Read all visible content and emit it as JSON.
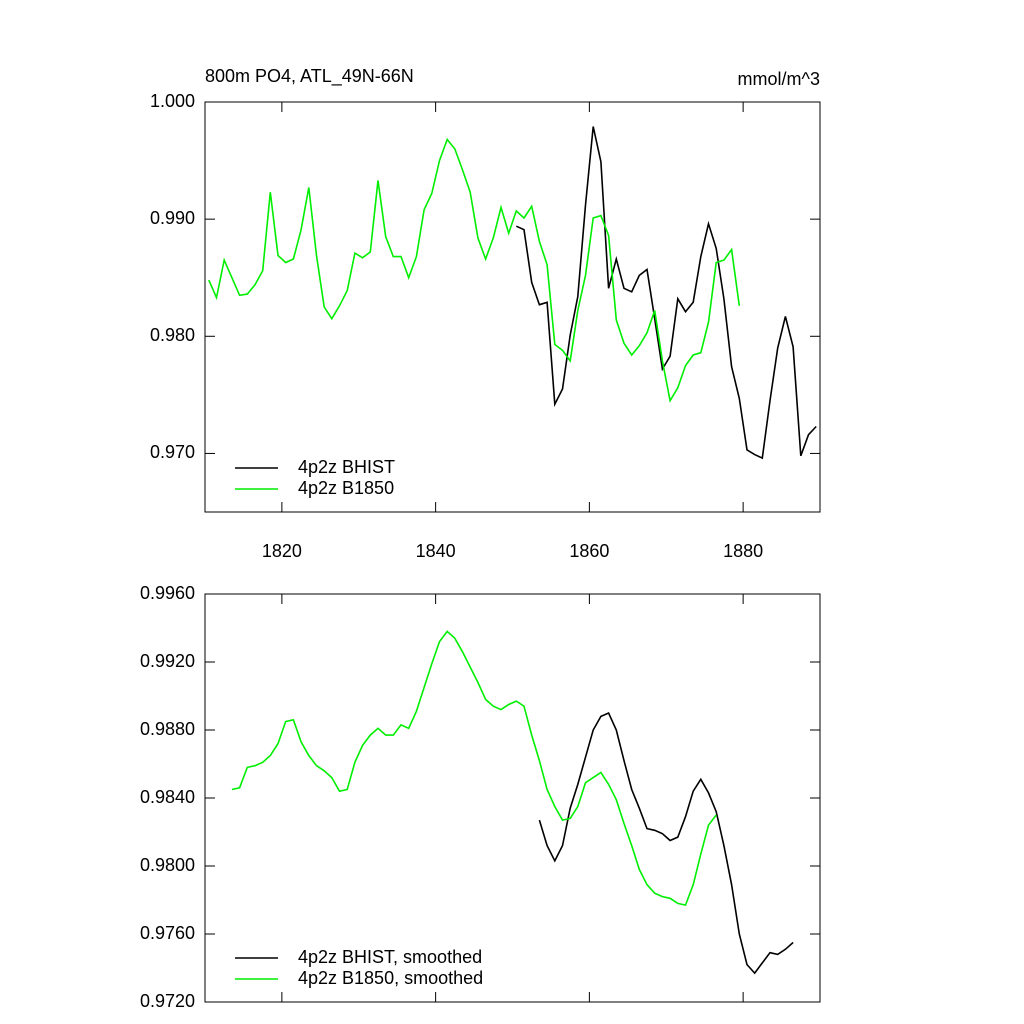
{
  "chart_data": [
    {
      "type": "line",
      "title": "800m PO4, ATL_49N-66N",
      "units": "mmol/m^3",
      "xlim": [
        1810,
        1890
      ],
      "xticks": [
        1820,
        1840,
        1860,
        1880
      ],
      "ylim": [
        0.965,
        1.0
      ],
      "yticks": [
        {
          "value": 0.97,
          "label": "0.970"
        },
        {
          "value": 0.98,
          "label": "0.980"
        },
        {
          "value": 0.99,
          "label": "0.990"
        },
        {
          "value": 1.0,
          "label": "1.000"
        }
      ],
      "legend": "lower left",
      "series": [
        {
          "name": "4p2z BHIST",
          "color": "#000000",
          "x": [
            1850.5,
            1851.5,
            1852.5,
            1853.5,
            1854.5,
            1855.5,
            1856.5,
            1857.5,
            1858.5,
            1859.5,
            1860.5,
            1861.5,
            1862.5,
            1863.5,
            1864.5,
            1865.5,
            1866.5,
            1867.5,
            1868.5,
            1869.5,
            1870.5,
            1871.5,
            1872.5,
            1873.5,
            1874.5,
            1875.5,
            1876.5,
            1877.5,
            1878.5,
            1879.5,
            1880.5,
            1881.5,
            1882.5,
            1883.5,
            1884.5,
            1885.5,
            1886.5,
            1887.5,
            1888.5,
            1889.5
          ],
          "values": [
            0.9894,
            0.9891,
            0.9846,
            0.9827,
            0.9829,
            0.9742,
            0.9755,
            0.9801,
            0.9834,
            0.9912,
            0.9979,
            0.9949,
            0.9841,
            0.9866,
            0.9841,
            0.9838,
            0.9852,
            0.9857,
            0.9815,
            0.9772,
            0.9783,
            0.9832,
            0.9821,
            0.9829,
            0.9868,
            0.9896,
            0.9875,
            0.9832,
            0.9774,
            0.9747,
            0.9703,
            0.9699,
            0.9696,
            0.9745,
            0.979,
            0.9817,
            0.9791,
            0.9698,
            0.9716,
            0.9723
          ]
        },
        {
          "name": "4p2z B1850",
          "color": "#00ee00",
          "x": [
            1810.5,
            1811.5,
            1812.5,
            1813.5,
            1814.5,
            1815.5,
            1816.5,
            1817.5,
            1818.5,
            1819.5,
            1820.5,
            1821.5,
            1822.5,
            1823.5,
            1824.5,
            1825.5,
            1826.5,
            1827.5,
            1828.5,
            1829.5,
            1830.5,
            1831.5,
            1832.5,
            1833.5,
            1834.5,
            1835.5,
            1836.5,
            1837.5,
            1838.5,
            1839.5,
            1840.5,
            1841.5,
            1842.5,
            1843.5,
            1844.5,
            1845.5,
            1846.5,
            1847.5,
            1848.5,
            1849.5,
            1850.5,
            1851.5,
            1852.5,
            1853.5,
            1854.5,
            1855.5,
            1856.5,
            1857.5,
            1858.5,
            1859.5,
            1860.5,
            1861.5,
            1862.5,
            1863.5,
            1864.5,
            1865.5,
            1866.5,
            1867.5,
            1868.5,
            1869.5,
            1870.5,
            1871.5,
            1872.5,
            1873.5,
            1874.5,
            1875.5,
            1876.5,
            1877.5,
            1878.5,
            1879.5
          ],
          "values": [
            0.9848,
            0.9833,
            0.9865,
            0.985,
            0.9835,
            0.9836,
            0.9844,
            0.9856,
            0.9923,
            0.9869,
            0.9863,
            0.9866,
            0.9891,
            0.9927,
            0.9869,
            0.9825,
            0.9815,
            0.9826,
            0.9839,
            0.9871,
            0.9867,
            0.9872,
            0.9933,
            0.9885,
            0.9868,
            0.9868,
            0.985,
            0.9868,
            0.9908,
            0.9922,
            0.995,
            0.9968,
            0.996,
            0.9942,
            0.9923,
            0.9884,
            0.9866,
            0.9884,
            0.991,
            0.9888,
            0.9907,
            0.9901,
            0.9911,
            0.9881,
            0.9861,
            0.9793,
            0.9788,
            0.9779,
            0.9822,
            0.9852,
            0.9901,
            0.9903,
            0.9886,
            0.9814,
            0.9794,
            0.9784,
            0.9792,
            0.9803,
            0.9822,
            0.9779,
            0.9745,
            0.9756,
            0.9775,
            0.9784,
            0.9786,
            0.9812,
            0.9863,
            0.9865,
            0.9874,
            0.9826
          ]
        }
      ]
    },
    {
      "type": "line",
      "xlim": [
        1810,
        1890
      ],
      "ylim": [
        0.972,
        0.996
      ],
      "yticks": [
        {
          "value": 0.972,
          "label": "0.9720"
        },
        {
          "value": 0.976,
          "label": "0.9760"
        },
        {
          "value": 0.98,
          "label": "0.9800"
        },
        {
          "value": 0.984,
          "label": "0.9840"
        },
        {
          "value": 0.988,
          "label": "0.9880"
        },
        {
          "value": 0.992,
          "label": "0.9920"
        },
        {
          "value": 0.996,
          "label": "0.9960"
        }
      ],
      "legend": "lower left",
      "series": [
        {
          "name": "4p2z BHIST, smoothed",
          "color": "#000000",
          "x": [
            1853.5,
            1854.5,
            1855.5,
            1856.5,
            1857.5,
            1858.5,
            1859.5,
            1860.5,
            1861.5,
            1862.5,
            1863.5,
            1864.5,
            1865.5,
            1866.5,
            1867.5,
            1868.5,
            1869.5,
            1870.5,
            1871.5,
            1872.5,
            1873.5,
            1874.5,
            1875.5,
            1876.5,
            1877.5,
            1878.5,
            1879.5,
            1880.5,
            1881.5,
            1882.5,
            1883.5,
            1884.5,
            1885.5,
            1886.5
          ],
          "values": [
            0.9827,
            0.9812,
            0.9803,
            0.9812,
            0.9834,
            0.9848,
            0.9864,
            0.988,
            0.9888,
            0.989,
            0.988,
            0.9862,
            0.9845,
            0.9834,
            0.9822,
            0.9821,
            0.9819,
            0.9815,
            0.9817,
            0.9829,
            0.9844,
            0.9851,
            0.9843,
            0.9832,
            0.9812,
            0.9789,
            0.976,
            0.9742,
            0.9737,
            0.9743,
            0.9749,
            0.9748,
            0.9751,
            0.9755
          ]
        },
        {
          "name": "4p2z B1850, smoothed",
          "color": "#00ee00",
          "x": [
            1813.5,
            1814.5,
            1815.5,
            1816.5,
            1817.5,
            1818.5,
            1819.5,
            1820.5,
            1821.5,
            1822.5,
            1823.5,
            1824.5,
            1825.5,
            1826.5,
            1827.5,
            1828.5,
            1829.5,
            1830.5,
            1831.5,
            1832.5,
            1833.5,
            1834.5,
            1835.5,
            1836.5,
            1837.5,
            1838.5,
            1839.5,
            1840.5,
            1841.5,
            1842.5,
            1843.5,
            1844.5,
            1845.5,
            1846.5,
            1847.5,
            1848.5,
            1849.5,
            1850.5,
            1851.5,
            1852.5,
            1853.5,
            1854.5,
            1855.5,
            1856.5,
            1857.5,
            1858.5,
            1859.5,
            1860.5,
            1861.5,
            1862.5,
            1863.5,
            1864.5,
            1865.5,
            1866.5,
            1867.5,
            1868.5,
            1869.5,
            1870.5,
            1871.5,
            1872.5,
            1873.5,
            1874.5,
            1875.5,
            1876.5
          ],
          "values": [
            0.9845,
            0.9846,
            0.9858,
            0.9859,
            0.9861,
            0.9865,
            0.9872,
            0.9885,
            0.9886,
            0.9873,
            0.9865,
            0.9859,
            0.9856,
            0.9852,
            0.9844,
            0.9845,
            0.9861,
            0.9871,
            0.9877,
            0.9881,
            0.9877,
            0.9877,
            0.9883,
            0.9881,
            0.9891,
            0.9905,
            0.9919,
            0.9932,
            0.9938,
            0.9934,
            0.9926,
            0.9917,
            0.9908,
            0.9898,
            0.9894,
            0.9892,
            0.9895,
            0.9897,
            0.9894,
            0.9877,
            0.9862,
            0.9845,
            0.9835,
            0.9827,
            0.9828,
            0.9835,
            0.9849,
            0.9852,
            0.9855,
            0.9848,
            0.9839,
            0.9825,
            0.9812,
            0.9798,
            0.9789,
            0.9784,
            0.9782,
            0.9781,
            0.9778,
            0.9777,
            0.9789,
            0.9807,
            0.9824,
            0.983
          ]
        }
      ]
    }
  ]
}
